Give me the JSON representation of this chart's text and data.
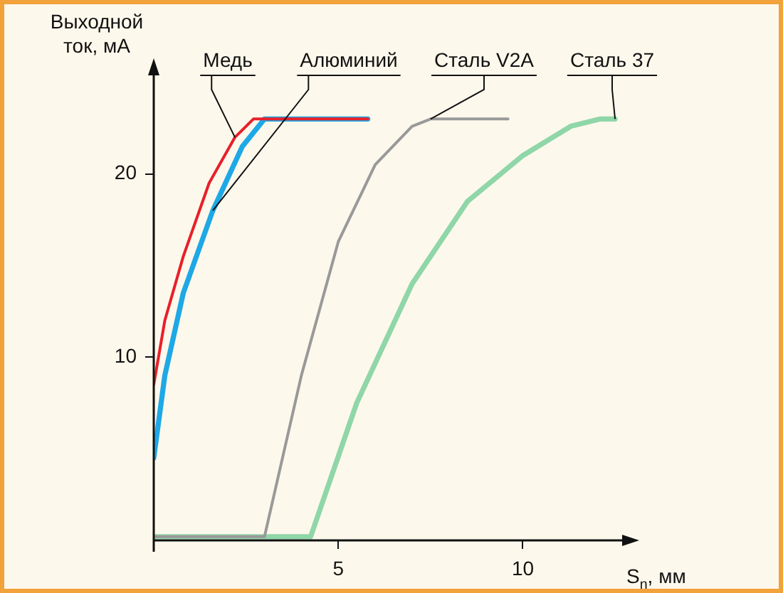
{
  "chart_data": {
    "type": "line",
    "xlabel": "S$_{n}$, мм",
    "ylabel": "Выходной ток, мА",
    "xlim": [
      0,
      13
    ],
    "ylim": [
      0,
      26
    ],
    "xticks": [
      5,
      10
    ],
    "yticks": [
      10,
      20
    ],
    "grid": false,
    "marker": "none",
    "line_style": "solid",
    "series": [
      {
        "name": "Медь",
        "color": "#e8202a",
        "x": [
          0,
          0.3,
          0.8,
          1.5,
          2.2,
          2.7,
          5.8
        ],
        "values": [
          8.5,
          12,
          15.5,
          19.5,
          22,
          23,
          23
        ]
      },
      {
        "name": "Алюминий",
        "color": "#1ea8e6",
        "x": [
          0,
          0.3,
          0.8,
          1.6,
          2.4,
          3.0,
          5.8
        ],
        "values": [
          4.5,
          9,
          13.5,
          18,
          21.5,
          23,
          23
        ]
      },
      {
        "name": "Сталь V2A",
        "color": "#999999",
        "x": [
          0,
          3.0,
          4,
          5,
          6,
          7,
          7.5,
          9.6
        ],
        "values": [
          0.2,
          0.2,
          9,
          16.3,
          20.5,
          22.6,
          23,
          23
        ]
      },
      {
        "name": "Сталь 37",
        "color": "#8fd6a8",
        "x": [
          0,
          4.25,
          5.5,
          7,
          8.5,
          10,
          11.3,
          12.1,
          12.5
        ],
        "values": [
          0.2,
          0.2,
          7.5,
          14,
          18.5,
          21,
          22.6,
          23,
          23
        ]
      }
    ]
  }
}
